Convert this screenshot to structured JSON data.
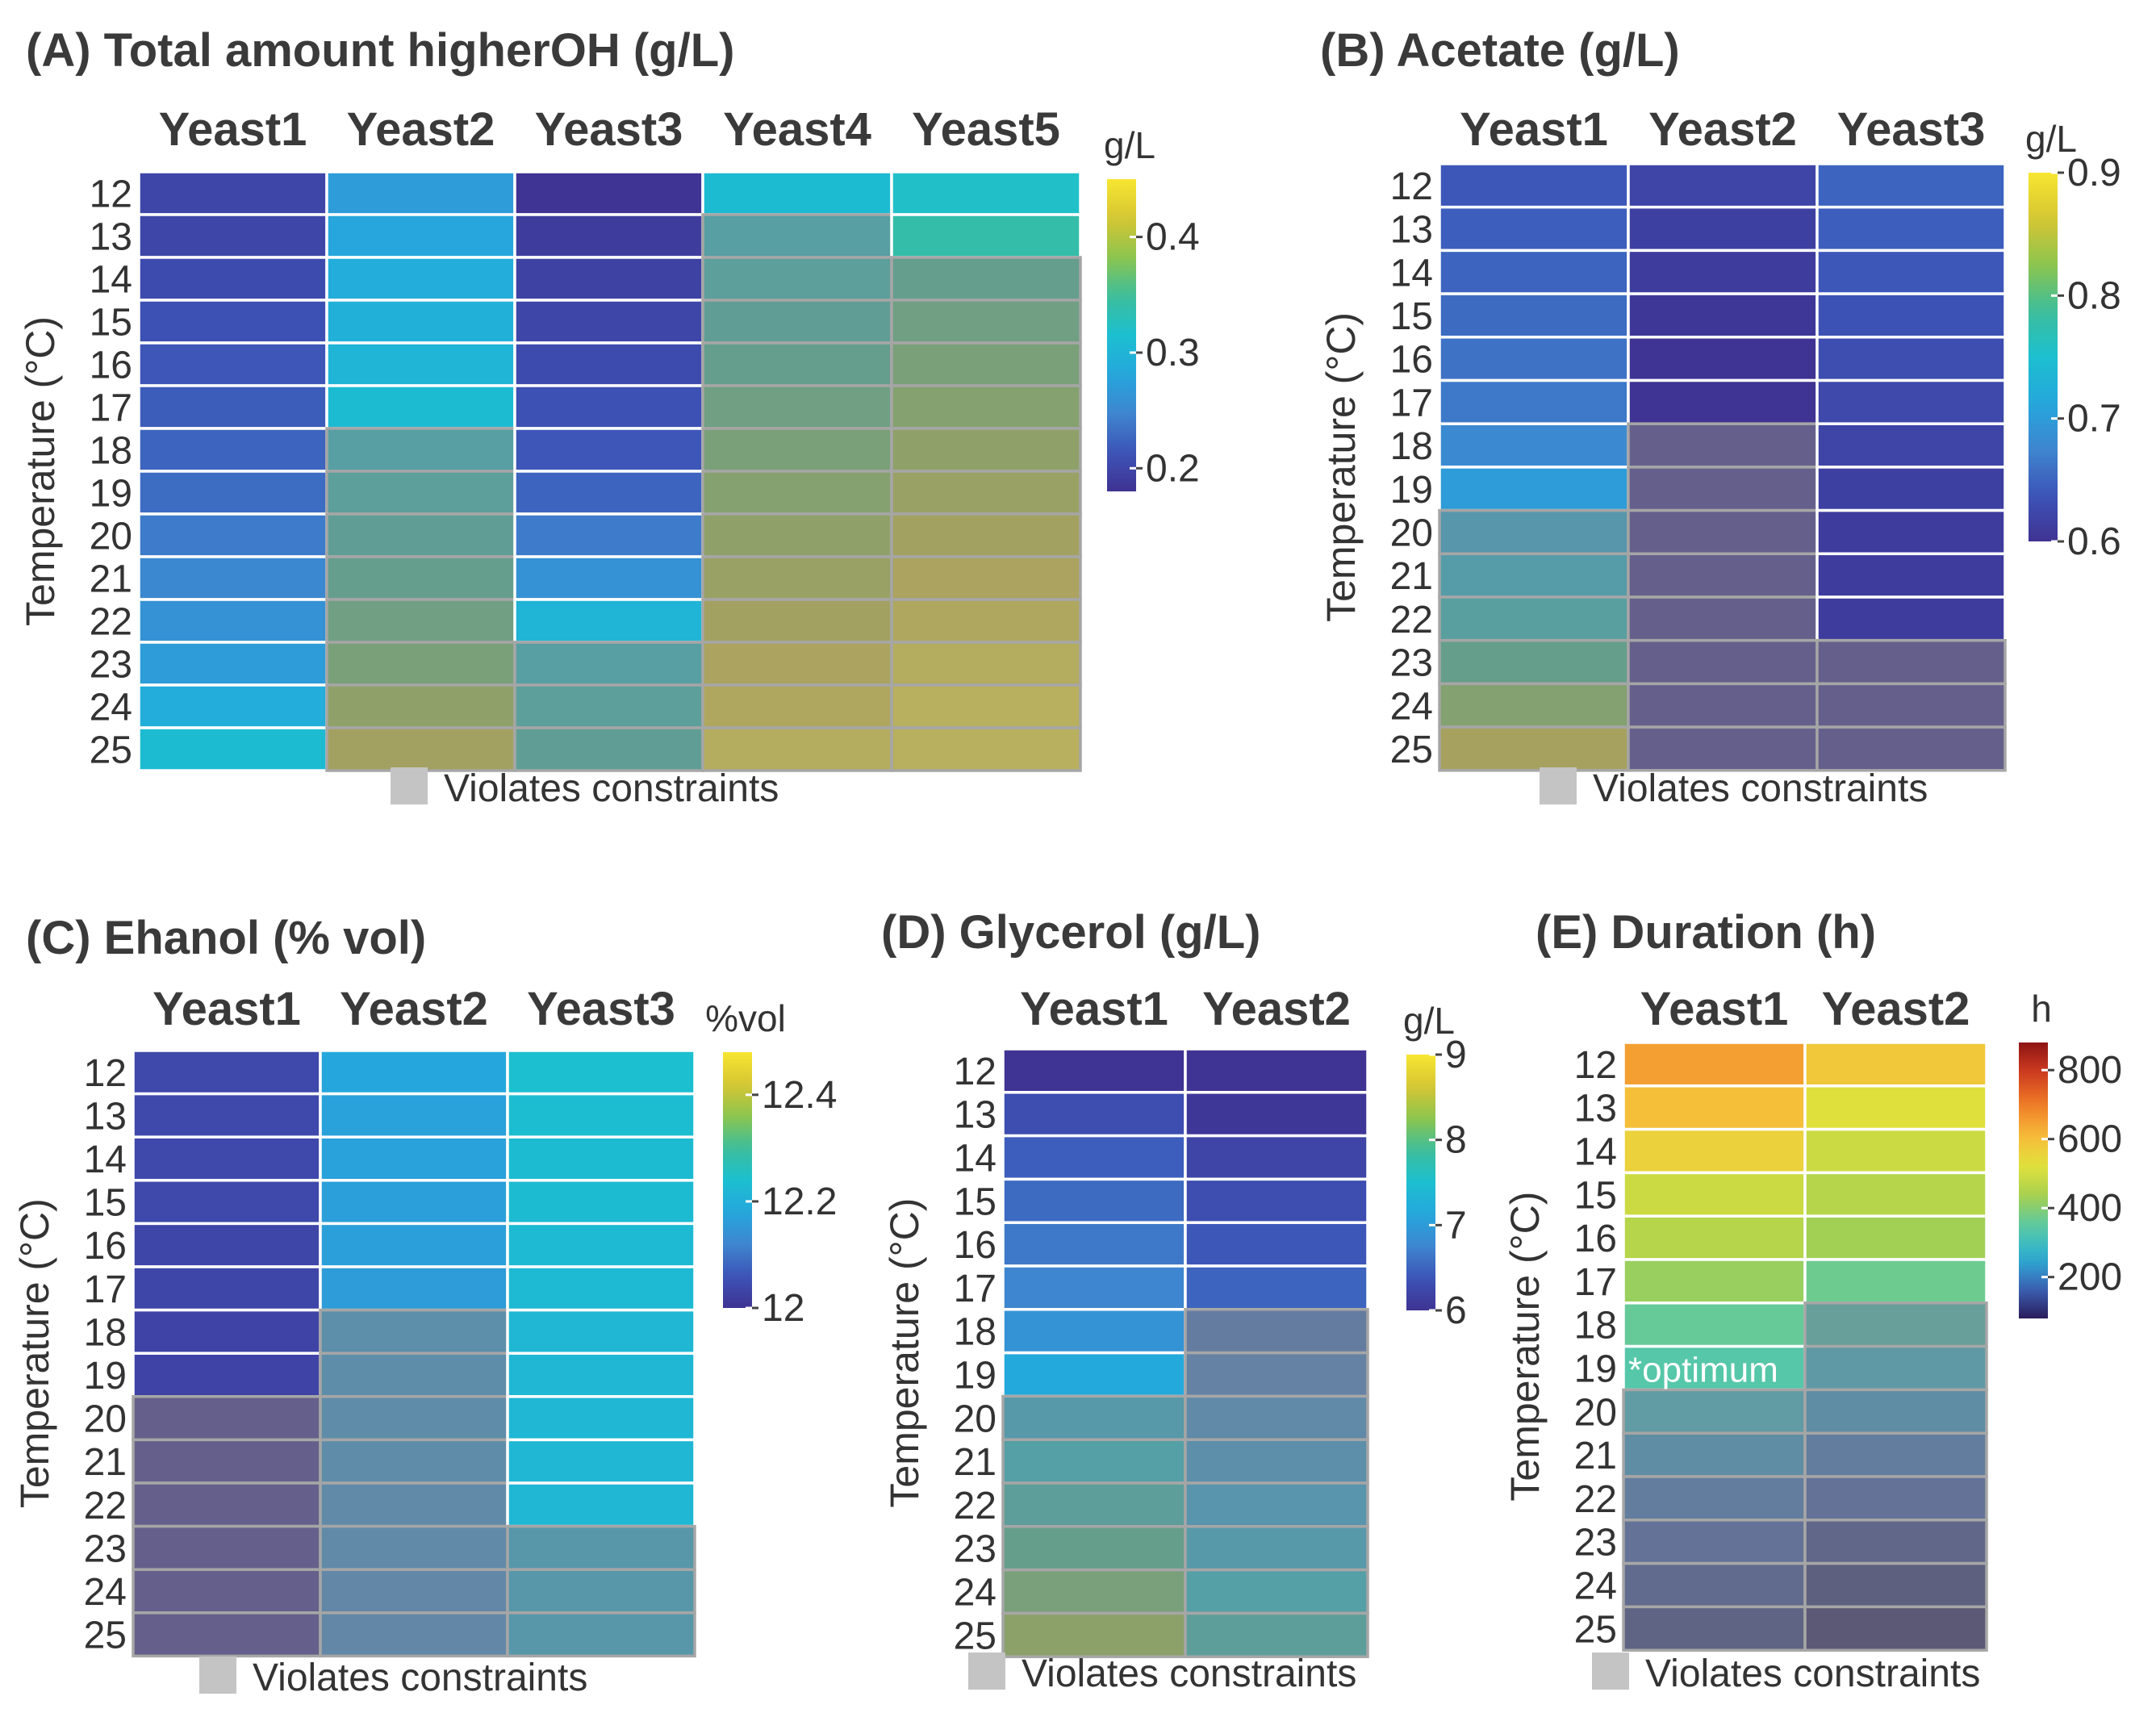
{
  "chart_data": [
    {
      "id": "A",
      "type": "heatmap",
      "title": "(A) Total amount higherOH (g/L)",
      "ylabel": "Temperature (°C)",
      "categories": [
        "Yeast1",
        "Yeast2",
        "Yeast3",
        "Yeast4",
        "Yeast5"
      ],
      "rows": [
        12,
        13,
        14,
        15,
        16,
        17,
        18,
        19,
        20,
        21,
        22,
        23,
        24,
        25
      ],
      "values": [
        [
          0.2,
          0.27,
          0.18,
          0.31,
          0.32
        ],
        [
          0.2,
          0.28,
          0.19,
          0.32,
          0.34
        ],
        [
          0.205,
          0.29,
          0.195,
          0.33,
          0.35
        ],
        [
          0.21,
          0.295,
          0.2,
          0.34,
          0.36
        ],
        [
          0.215,
          0.3,
          0.205,
          0.35,
          0.37
        ],
        [
          0.22,
          0.31,
          0.21,
          0.36,
          0.38
        ],
        [
          0.225,
          0.32,
          0.215,
          0.37,
          0.39
        ],
        [
          0.23,
          0.33,
          0.225,
          0.38,
          0.4
        ],
        [
          0.24,
          0.34,
          0.24,
          0.39,
          0.41
        ],
        [
          0.25,
          0.35,
          0.26,
          0.4,
          0.42
        ],
        [
          0.26,
          0.36,
          0.3,
          0.41,
          0.43
        ],
        [
          0.27,
          0.37,
          0.32,
          0.42,
          0.44
        ],
        [
          0.29,
          0.39,
          0.33,
          0.43,
          0.45
        ],
        [
          0.31,
          0.41,
          0.34,
          0.44,
          0.45
        ]
      ],
      "violates": [
        [
          false,
          false,
          false,
          false,
          false
        ],
        [
          false,
          false,
          false,
          true,
          false
        ],
        [
          false,
          false,
          false,
          true,
          true
        ],
        [
          false,
          false,
          false,
          true,
          true
        ],
        [
          false,
          false,
          false,
          true,
          true
        ],
        [
          false,
          false,
          false,
          true,
          true
        ],
        [
          false,
          true,
          false,
          true,
          true
        ],
        [
          false,
          true,
          false,
          true,
          true
        ],
        [
          false,
          true,
          false,
          true,
          true
        ],
        [
          false,
          true,
          false,
          true,
          true
        ],
        [
          false,
          true,
          false,
          true,
          true
        ],
        [
          false,
          true,
          true,
          true,
          true
        ],
        [
          false,
          true,
          true,
          true,
          true
        ],
        [
          false,
          true,
          true,
          true,
          true
        ]
      ],
      "scale": {
        "min": 0.18,
        "max": 0.45,
        "palette": "viridis-like",
        "unit": "g/L",
        "ticks": [
          0.2,
          0.3,
          0.4
        ],
        "tick_labels": [
          "0.2",
          "0.3",
          "0.4"
        ]
      },
      "legend": "Violates constraints",
      "legend_color": "#c4c4c4"
    },
    {
      "id": "B",
      "type": "heatmap",
      "title": "(B) Acetate (g/L)",
      "ylabel": "Temperature (°C)",
      "categories": [
        "Yeast1",
        "Yeast2",
        "Yeast3"
      ],
      "rows": [
        12,
        13,
        14,
        15,
        16,
        17,
        18,
        19,
        20,
        21,
        22,
        23,
        24,
        25
      ],
      "values": [
        [
          0.64,
          0.62,
          0.65
        ],
        [
          0.645,
          0.615,
          0.645
        ],
        [
          0.65,
          0.61,
          0.64
        ],
        [
          0.655,
          0.605,
          0.635
        ],
        [
          0.66,
          0.6,
          0.63
        ],
        [
          0.665,
          0.6,
          0.625
        ],
        [
          0.68,
          0.58,
          0.62
        ],
        [
          0.7,
          0.57,
          0.615
        ],
        [
          0.72,
          0.56,
          0.61
        ],
        [
          0.74,
          0.55,
          0.61
        ],
        [
          0.76,
          0.54,
          0.61
        ],
        [
          0.79,
          0.53,
          0.55
        ],
        [
          0.82,
          0.52,
          0.54
        ],
        [
          0.86,
          0.51,
          0.53
        ]
      ],
      "violates": [
        [
          false,
          false,
          false
        ],
        [
          false,
          false,
          false
        ],
        [
          false,
          false,
          false
        ],
        [
          false,
          false,
          false
        ],
        [
          false,
          false,
          false
        ],
        [
          false,
          false,
          false
        ],
        [
          false,
          true,
          false
        ],
        [
          false,
          true,
          false
        ],
        [
          true,
          true,
          false
        ],
        [
          true,
          true,
          false
        ],
        [
          true,
          true,
          false
        ],
        [
          true,
          true,
          true
        ],
        [
          true,
          true,
          true
        ],
        [
          true,
          true,
          true
        ]
      ],
      "scale": {
        "min": 0.6,
        "max": 0.9,
        "palette": "viridis-like",
        "unit": "g/L",
        "ticks": [
          0.6,
          0.7,
          0.8,
          0.9
        ],
        "tick_labels": [
          "0.6",
          "0.7",
          "0.8",
          "0.9"
        ]
      },
      "legend": "Violates constraints",
      "legend_color": "#c4c4c4"
    },
    {
      "id": "C",
      "type": "heatmap",
      "title": "(C) Ehanol (% vol)",
      "ylabel": "Temperature (°C)",
      "categories": [
        "Yeast1",
        "Yeast2",
        "Yeast3"
      ],
      "rows": [
        12,
        13,
        14,
        15,
        16,
        17,
        18,
        19,
        20,
        21,
        22,
        23,
        24,
        25
      ],
      "values": [
        [
          12.04,
          12.18,
          12.24
        ],
        [
          12.04,
          12.17,
          12.235
        ],
        [
          12.04,
          12.17,
          12.23
        ],
        [
          12.04,
          12.165,
          12.23
        ],
        [
          12.035,
          12.165,
          12.225
        ],
        [
          12.035,
          12.16,
          12.225
        ],
        [
          12.03,
          12.16,
          12.22
        ],
        [
          12.03,
          12.155,
          12.22
        ],
        [
          12.0,
          12.15,
          12.22
        ],
        [
          12.0,
          12.15,
          12.22
        ],
        [
          12.0,
          12.14,
          12.22
        ],
        [
          12.0,
          12.14,
          12.2
        ],
        [
          12.0,
          12.13,
          12.2
        ],
        [
          12.0,
          12.13,
          12.2
        ]
      ],
      "violates": [
        [
          false,
          false,
          false
        ],
        [
          false,
          false,
          false
        ],
        [
          false,
          false,
          false
        ],
        [
          false,
          false,
          false
        ],
        [
          false,
          false,
          false
        ],
        [
          false,
          false,
          false
        ],
        [
          false,
          true,
          false
        ],
        [
          false,
          true,
          false
        ],
        [
          true,
          true,
          false
        ],
        [
          true,
          true,
          false
        ],
        [
          true,
          true,
          false
        ],
        [
          true,
          true,
          true
        ],
        [
          true,
          true,
          true
        ],
        [
          true,
          true,
          true
        ]
      ],
      "scale": {
        "min": 12.0,
        "max": 12.48,
        "palette": "viridis-like",
        "unit": "%vol",
        "ticks": [
          12.0,
          12.2,
          12.4
        ],
        "tick_labels": [
          "12",
          "12.2",
          "12.4"
        ]
      },
      "legend": "Violates constraints",
      "legend_color": "#c4c4c4"
    },
    {
      "id": "D",
      "type": "heatmap",
      "title": "(D) Glycerol (g/L)",
      "ylabel": "Temperature (°C)",
      "categories": [
        "Yeast1",
        "Yeast2"
      ],
      "rows": [
        12,
        13,
        14,
        15,
        16,
        17,
        18,
        19,
        20,
        21,
        22,
        23,
        24,
        25
      ],
      "values": [
        [
          6.0,
          6.0
        ],
        [
          6.3,
          6.05
        ],
        [
          6.45,
          6.2
        ],
        [
          6.55,
          6.3
        ],
        [
          6.65,
          6.4
        ],
        [
          6.75,
          6.5
        ],
        [
          6.9,
          6.6
        ],
        [
          7.15,
          6.7
        ],
        [
          7.3,
          6.85
        ],
        [
          7.5,
          7.0
        ],
        [
          7.7,
          7.15
        ],
        [
          7.9,
          7.3
        ],
        [
          8.1,
          7.5
        ],
        [
          8.3,
          7.7
        ]
      ],
      "violates": [
        [
          false,
          false
        ],
        [
          false,
          false
        ],
        [
          false,
          false
        ],
        [
          false,
          false
        ],
        [
          false,
          false
        ],
        [
          false,
          false
        ],
        [
          false,
          true
        ],
        [
          false,
          true
        ],
        [
          true,
          true
        ],
        [
          true,
          true
        ],
        [
          true,
          true
        ],
        [
          true,
          true
        ],
        [
          true,
          true
        ],
        [
          true,
          true
        ]
      ],
      "scale": {
        "min": 6.0,
        "max": 9.0,
        "palette": "viridis-like",
        "unit": "g/L",
        "ticks": [
          6,
          7,
          8,
          9
        ],
        "tick_labels": [
          "6",
          "7",
          "8",
          "9"
        ]
      },
      "legend": "Violates constraints",
      "legend_color": "#c4c4c4"
    },
    {
      "id": "E",
      "type": "heatmap",
      "title": "(E) Duration (h)",
      "ylabel": "Temperature (°C)",
      "categories": [
        "Yeast1",
        "Yeast2"
      ],
      "rows": [
        12,
        13,
        14,
        15,
        16,
        17,
        18,
        19,
        20,
        21,
        22,
        23,
        24,
        25
      ],
      "values": [
        [
          650,
          580
        ],
        [
          600,
          520
        ],
        [
          560,
          490
        ],
        [
          490,
          460
        ],
        [
          460,
          430
        ],
        [
          420,
          370
        ],
        [
          360,
          310
        ],
        [
          340,
          270
        ],
        [
          280,
          230
        ],
        [
          230,
          190
        ],
        [
          190,
          160
        ],
        [
          160,
          130
        ],
        [
          140,
          110
        ],
        [
          120,
          90
        ]
      ],
      "violates": [
        [
          false,
          false
        ],
        [
          false,
          false
        ],
        [
          false,
          false
        ],
        [
          false,
          false
        ],
        [
          false,
          false
        ],
        [
          false,
          false
        ],
        [
          false,
          true
        ],
        [
          false,
          true
        ],
        [
          true,
          true
        ],
        [
          true,
          true
        ],
        [
          true,
          true
        ],
        [
          true,
          true
        ],
        [
          true,
          true
        ],
        [
          true,
          true
        ]
      ],
      "annotation": {
        "row": 19,
        "column": "Yeast1",
        "text": "*optimum"
      },
      "scale": {
        "min": 80,
        "max": 880,
        "palette": "spectral",
        "unit": "h",
        "ticks": [
          200,
          400,
          600,
          800
        ],
        "tick_labels": [
          "200",
          "400",
          "600",
          "800"
        ]
      },
      "legend": "Violates constraints",
      "legend_color": "#c4c4c4"
    }
  ]
}
